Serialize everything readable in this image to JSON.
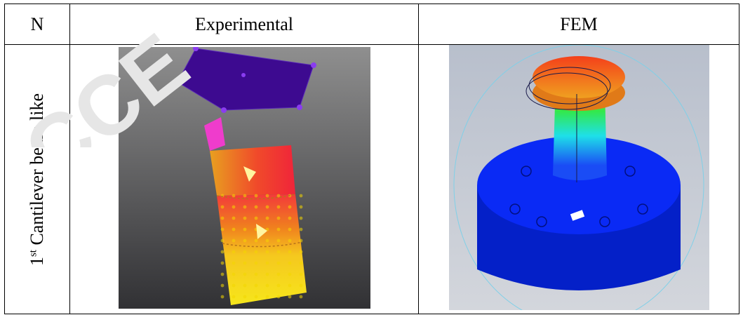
{
  "table": {
    "headers": [
      "N",
      "Experimental",
      "FEM"
    ],
    "row1": {
      "mode_ordinal": "1",
      "mode_sup": "st",
      "mode_label": " Cantilever beam like"
    }
  },
  "colors": {
    "experimental_background_top": "#909090",
    "experimental_background_bottom": "#333333",
    "top_plate": "#3b0c8e",
    "fem_background": "#c0c5cf",
    "fem_base": "#0a2af5",
    "fem_top": "#f24a10"
  }
}
